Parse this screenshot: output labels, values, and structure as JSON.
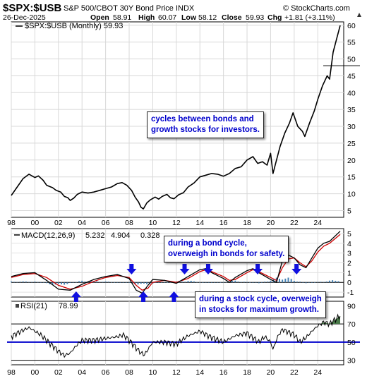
{
  "header": {
    "symbol": "$SPX:$USB",
    "description": "S&P 500/CBOT 30Y Bond Price INDX",
    "source": "© StockCharts.com",
    "date": "26-Dec-2025",
    "open_label": "Open",
    "open": "58.91",
    "high_label": "High",
    "high": "60.07",
    "low_label": "Low",
    "low": "58.12",
    "close_label": "Close",
    "close": "59.93",
    "chg_label": "Chg",
    "chg": "+1.81 (+3.11%)"
  },
  "main": {
    "legend": "$SPX:$USB (Monthly) 59.93",
    "last_value": "59.93"
  },
  "macd": {
    "label": "MACD(12,26,9)",
    "v1": "5.232",
    "v2": "4.904",
    "v3": "0.328"
  },
  "rsi": {
    "label": "RSI(21)",
    "value": "78.99"
  },
  "annotations": {
    "a1_line1": "cycles between bonds and",
    "a1_line2": "growth stocks for investors.",
    "a2_line1": "during a bond cycle,",
    "a2_line2": "overweigh in bonds for safety.",
    "a3_line1": "during a stock cycle, overweigh",
    "a3_line2": "in stocks for maximum growth."
  },
  "colors": {
    "price": "#000000",
    "macd_red": "#cc0000",
    "histogram": "#4682b4",
    "arrow": "#1010e0",
    "rsi_line": "#0000cc",
    "annotation_text": "#0000cc",
    "rsi_fill": "#4a7a4a"
  },
  "chart_data": [
    {
      "type": "line",
      "title": "$SPX:$USB (Monthly) 59.93",
      "x_tick_labels": [
        "98",
        "00",
        "02",
        "04",
        "06",
        "08",
        "10",
        "12",
        "14",
        "16",
        "18",
        "20",
        "22",
        "24"
      ],
      "xlim": [
        1998,
        2026.2
      ],
      "ylim": [
        3,
        61
      ],
      "y_ticks": [
        5,
        10,
        15,
        20,
        25,
        30,
        35,
        40,
        45,
        50,
        55,
        60
      ],
      "reference_line": 48,
      "grid": true,
      "series": [
        {
          "x": [
            1998.0,
            1998.5,
            1999.0,
            1999.5,
            2000.0,
            2000.3,
            2000.7,
            2001.0,
            2001.5,
            2001.8,
            2002.2,
            2002.5,
            2002.8,
            2003.0,
            2003.3,
            2003.6,
            2004.0,
            2004.5,
            2005.0,
            2005.5,
            2006.0,
            2006.5,
            2007.0,
            2007.4,
            2007.8,
            2008.2,
            2008.5,
            2008.8,
            2009.0,
            2009.2,
            2009.5,
            2009.8,
            2010.2,
            2010.5,
            2010.8,
            2011.2,
            2011.5,
            2011.8,
            2012.2,
            2012.6,
            2013.0,
            2013.5,
            2014.0,
            2014.5,
            2015.0,
            2015.5,
            2016.0,
            2016.5,
            2017.0,
            2017.5,
            2018.0,
            2018.5,
            2018.9,
            2019.3,
            2019.7,
            2020.0,
            2020.2,
            2020.5,
            2020.8,
            2021.2,
            2021.6,
            2021.9,
            2022.3,
            2022.7,
            2022.9,
            2023.3,
            2023.7,
            2024.0,
            2024.4,
            2024.8,
            2025.0,
            2025.3,
            2025.6,
            2025.9
          ],
          "y": [
            9.5,
            12.0,
            14.5,
            15.8,
            14.8,
            15.3,
            14.0,
            12.5,
            11.8,
            11.0,
            10.5,
            9.2,
            8.8,
            8.0,
            8.7,
            9.8,
            10.5,
            10.2,
            10.5,
            11.0,
            11.5,
            12.0,
            13.0,
            13.3,
            12.5,
            11.0,
            9.0,
            7.5,
            6.0,
            5.5,
            7.3,
            8.2,
            9.0,
            8.4,
            9.2,
            9.8,
            8.8,
            8.5,
            9.7,
            10.3,
            12.0,
            13.2,
            15.0,
            15.5,
            16.0,
            15.8,
            15.2,
            16.0,
            17.5,
            18.0,
            20.0,
            21.0,
            19.0,
            19.5,
            18.5,
            22.0,
            16.0,
            20.0,
            24.0,
            28.0,
            31.0,
            34.0,
            30.0,
            28.5,
            27.0,
            31.0,
            34.5,
            38.0,
            42.0,
            45.0,
            44.0,
            52.0,
            56.0,
            59.93
          ]
        }
      ]
    },
    {
      "type": "line",
      "title": "MACD(12,26,9) 5.232, 4.904, 0.328",
      "ylim": [
        -1.5,
        5.5
      ],
      "y_ticks": [
        -1,
        0,
        1,
        2,
        3,
        4,
        5
      ],
      "series": [
        {
          "name": "MACD",
          "x": [
            1998,
            1999,
            2000,
            2001,
            2002,
            2003,
            2004,
            2005,
            2006,
            2007,
            2008,
            2008.6,
            2009.1,
            2009.6,
            2010,
            2011,
            2012,
            2013,
            2014,
            2014.5,
            2015,
            2016,
            2016.5,
            2017,
            2018,
            2018.5,
            2019,
            2020,
            2020.5,
            2021,
            2021.5,
            2022,
            2022.5,
            2023,
            2023.5,
            2024,
            2024.5,
            2025,
            2025.9
          ],
          "y": [
            0.6,
            0.9,
            1.0,
            0.2,
            -0.7,
            -0.8,
            -0.2,
            0.3,
            0.6,
            0.8,
            0.4,
            -0.8,
            -1.1,
            -0.3,
            0.3,
            0.2,
            -0.1,
            0.6,
            1.3,
            1.4,
            1.0,
            0.4,
            0.0,
            0.5,
            1.2,
            1.4,
            1.0,
            0.3,
            0.0,
            2.2,
            2.8,
            2.5,
            1.8,
            1.5,
            2.5,
            3.5,
            4.0,
            4.2,
            5.232
          ]
        },
        {
          "name": "Signal",
          "x": [
            1998,
            1999,
            2000,
            2001,
            2002,
            2003,
            2004,
            2005,
            2006,
            2007,
            2008,
            2008.6,
            2009.1,
            2009.6,
            2010,
            2011,
            2012,
            2013,
            2014,
            2014.5,
            2015,
            2016,
            2016.5,
            2017,
            2018,
            2018.5,
            2019,
            2020,
            2020.5,
            2021,
            2021.5,
            2022,
            2022.5,
            2023,
            2023.5,
            2024,
            2024.5,
            2025,
            2025.9
          ],
          "y": [
            0.5,
            0.8,
            0.9,
            0.5,
            -0.3,
            -0.7,
            -0.4,
            0.1,
            0.5,
            0.7,
            0.5,
            -0.3,
            -0.8,
            -0.6,
            0.0,
            0.2,
            0.0,
            0.4,
            1.1,
            1.3,
            1.1,
            0.6,
            0.2,
            0.3,
            1.0,
            1.3,
            1.1,
            0.5,
            0.2,
            1.5,
            2.4,
            2.5,
            2.0,
            1.6,
            2.2,
            3.1,
            3.7,
            4.0,
            4.904
          ]
        },
        {
          "name": "Histogram",
          "x": [
            1998,
            2000,
            2002,
            2004,
            2006,
            2008,
            2009,
            2011,
            2013,
            2015,
            2017,
            2019,
            2021,
            2023,
            2025.9
          ],
          "y": [
            0.1,
            0.1,
            -0.4,
            0.2,
            0.1,
            -0.1,
            -0.3,
            0.0,
            0.2,
            -0.1,
            0.2,
            -0.1,
            0.7,
            -0.1,
            0.328
          ]
        }
      ]
    },
    {
      "type": "line",
      "title": "RSI(21) 78.99",
      "ylim": [
        25,
        95
      ],
      "y_ticks": [
        30,
        50,
        70,
        90
      ],
      "reference_lines": [
        70,
        50,
        30
      ],
      "series": [
        {
          "x": [
            1998,
            1998.5,
            1999,
            1999.5,
            2000,
            2000.5,
            2001,
            2001.5,
            2002,
            2002.5,
            2003,
            2003.5,
            2004,
            2005,
            2006,
            2007,
            2007.5,
            2008,
            2008.5,
            2009,
            2009.3,
            2009.6,
            2010,
            2011,
            2012,
            2013,
            2014,
            2015,
            2016,
            2017,
            2018,
            2019,
            2019.5,
            2020,
            2020.2,
            2020.6,
            2021,
            2022,
            2022.5,
            2023,
            2023.5,
            2024,
            2024.5,
            2025,
            2025.9
          ],
          "y": [
            56,
            60,
            63,
            66,
            62,
            58,
            52,
            46,
            40,
            35,
            38,
            46,
            52,
            52,
            54,
            56,
            58,
            52,
            45,
            38,
            36,
            42,
            50,
            50,
            48,
            57,
            62,
            55,
            50,
            57,
            60,
            50,
            56,
            50,
            42,
            56,
            64,
            58,
            50,
            55,
            62,
            68,
            72,
            70,
            78.99
          ]
        }
      ]
    }
  ]
}
